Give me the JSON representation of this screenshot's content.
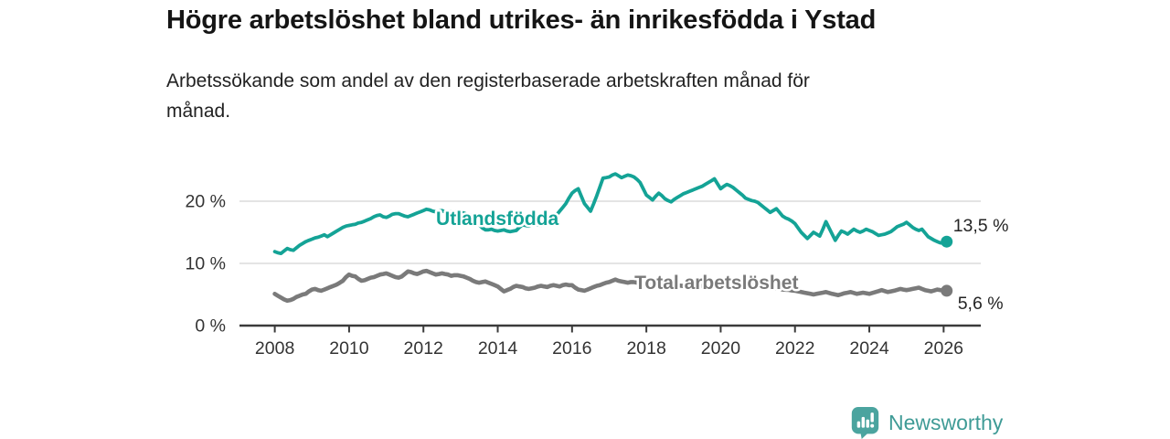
{
  "header": {
    "title": "Högre arbetslöshet bland utrikes- än inrikesfödda i Ystad",
    "subtitle": "Arbetssökande som andel av den registerbaserade arbetskraften månad för\nmånad."
  },
  "footer": {
    "brand": "Newsworthy",
    "logo_icon": "bar-chart-speech-bubble-icon",
    "brand_color": "#3F9B96",
    "logo_color": "#4BA49F"
  },
  "colors": {
    "background": "#ffffff",
    "grid": "#DCDCDC",
    "axis": "#3A3A3A",
    "tick_text": "#333333",
    "value_text": "#242424",
    "accent_teal": "#14A396",
    "neutral_gray": "#7A7A7A"
  },
  "chart_data": {
    "type": "line",
    "title": "Högre arbetslöshet bland utrikes- än inrikesfödda i Ystad",
    "subtitle": "Arbetssökande som andel av den registerbaserade arbetskraften månad för månad.",
    "xlabel": "",
    "ylabel": "",
    "grid": "horizontal",
    "legend_position": "inline-labels",
    "x_range": [
      2007.05,
      2027.0
    ],
    "y_range": [
      0,
      27.3
    ],
    "x_ticks": [
      2008,
      2010,
      2012,
      2014,
      2016,
      2018,
      2020,
      2022,
      2024,
      2026
    ],
    "y_ticks": [
      {
        "value": 0,
        "label": "0 %"
      },
      {
        "value": 10,
        "label": "10 %"
      },
      {
        "value": 20,
        "label": "20 %"
      }
    ],
    "x_unit": "year (monthly series)",
    "y_unit": "percent",
    "x_start": 2008.0,
    "x_step": 0.08333,
    "series": [
      {
        "name": "Utlandsfödda",
        "color": "#14A396",
        "line_width": 3.8,
        "end_value": 13.5,
        "end_value_label": "13,5 %",
        "label_anchor": {
          "x": 2012.34,
          "y": 16.2
        },
        "values": [
          11.9,
          11.7,
          11.6,
          12.0,
          12.4,
          12.2,
          12.1,
          12.5,
          12.9,
          13.2,
          13.5,
          13.7,
          13.9,
          14.1,
          14.2,
          14.4,
          14.6,
          14.3,
          14.6,
          14.9,
          15.2,
          15.5,
          15.8,
          16.0,
          16.1,
          16.2,
          16.3,
          16.5,
          16.6,
          16.8,
          17.0,
          17.2,
          17.5,
          17.7,
          17.8,
          17.5,
          17.4,
          17.6,
          17.9,
          18.0,
          18.0,
          17.8,
          17.6,
          17.5,
          17.7,
          17.9,
          18.1,
          18.3,
          18.5,
          18.7,
          18.6,
          18.4,
          18.3,
          18.4,
          18.5,
          18.3,
          18.2,
          18.3,
          18.3,
          18.2,
          18.2,
          18.1,
          17.9,
          17.8,
          17.6,
          16.9,
          16.2,
          15.7,
          15.4,
          15.4,
          15.5,
          15.3,
          15.2,
          15.3,
          15.4,
          15.2,
          15.1,
          15.2,
          15.3,
          15.8,
          16.2,
          16.1,
          16.0,
          16.2,
          16.4,
          16.2,
          16.1,
          16.4,
          16.6,
          16.9,
          17.2,
          17.8,
          18.4,
          19.0,
          19.6,
          20.5,
          21.3,
          21.7,
          22.0,
          20.8,
          19.6,
          19.0,
          18.4,
          19.6,
          20.9,
          22.3,
          23.7,
          23.8,
          23.9,
          24.2,
          24.4,
          24.1,
          23.8,
          24.0,
          24.2,
          24.1,
          23.9,
          23.5,
          23.0,
          22.0,
          21.0,
          20.6,
          20.2,
          20.8,
          21.3,
          20.9,
          20.4,
          20.1,
          19.9,
          20.3,
          20.6,
          20.9,
          21.2,
          21.4,
          21.6,
          21.8,
          22.0,
          22.2,
          22.4,
          22.7,
          23.0,
          23.3,
          23.6,
          22.8,
          22.0,
          22.4,
          22.7,
          22.5,
          22.2,
          21.8,
          21.4,
          21.0,
          20.5,
          20.3,
          20.1,
          20.0,
          19.8,
          19.4,
          19.0,
          18.6,
          18.2,
          18.5,
          18.8,
          18.2,
          17.6,
          17.3,
          17.1,
          16.8,
          16.4,
          15.7,
          15.0,
          14.5,
          14.0,
          14.5,
          15.0,
          14.7,
          14.4,
          15.5,
          16.7,
          15.7,
          14.7,
          13.7,
          14.5,
          15.2,
          15.0,
          14.7,
          15.1,
          15.5,
          15.2,
          15.0,
          15.2,
          15.5,
          15.3,
          15.1,
          14.8,
          14.5,
          14.6,
          14.7,
          14.9,
          15.1,
          15.5,
          15.9,
          16.1,
          16.3,
          16.6,
          16.2,
          15.8,
          15.5,
          15.3,
          15.5,
          14.9,
          14.3,
          14.0,
          13.7,
          13.5,
          13.3,
          13.3,
          13.5
        ]
      },
      {
        "name": "Total arbetslöshet",
        "color": "#7A7A7A",
        "line_width": 4.6,
        "end_value": 5.6,
        "end_value_label": "5,6 %",
        "label_anchor": {
          "x": 2017.68,
          "y": 5.9
        },
        "values": [
          5.1,
          4.8,
          4.5,
          4.2,
          4.0,
          4.1,
          4.3,
          4.6,
          4.8,
          5.0,
          5.1,
          5.5,
          5.8,
          5.9,
          5.7,
          5.6,
          5.8,
          6.0,
          6.2,
          6.4,
          6.6,
          6.9,
          7.2,
          7.8,
          8.2,
          8.0,
          7.9,
          7.5,
          7.2,
          7.3,
          7.5,
          7.7,
          7.8,
          8.0,
          8.2,
          8.3,
          8.4,
          8.2,
          8.0,
          7.8,
          7.7,
          7.9,
          8.3,
          8.7,
          8.6,
          8.4,
          8.3,
          8.5,
          8.7,
          8.8,
          8.6,
          8.4,
          8.2,
          8.3,
          8.4,
          8.3,
          8.2,
          8.0,
          8.1,
          8.1,
          8.0,
          7.9,
          7.7,
          7.5,
          7.2,
          7.0,
          6.9,
          7.0,
          7.1,
          6.9,
          6.7,
          6.5,
          6.3,
          5.9,
          5.5,
          5.7,
          5.9,
          6.2,
          6.4,
          6.3,
          6.2,
          6.0,
          5.9,
          6.0,
          6.1,
          6.3,
          6.4,
          6.3,
          6.2,
          6.4,
          6.5,
          6.4,
          6.3,
          6.5,
          6.6,
          6.5,
          6.5,
          6.1,
          5.8,
          5.7,
          5.6,
          5.8,
          6.0,
          6.2,
          6.4,
          6.5,
          6.7,
          6.9,
          7.0,
          7.2,
          7.4,
          7.2,
          7.1,
          7.0,
          6.9,
          7.0,
          7.0,
          6.9,
          6.8,
          6.8,
          6.7,
          6.68,
          6.66,
          6.63,
          6.6,
          6.58,
          6.55,
          6.52,
          6.5,
          6.47,
          6.44,
          6.42,
          6.35,
          6.32,
          6.3,
          6.32,
          6.34,
          6.37,
          6.4,
          6.42,
          6.45,
          6.48,
          6.5,
          6.55,
          6.6,
          6.75,
          6.9,
          7.05,
          7.2,
          7.15,
          7.1,
          7.0,
          6.9,
          6.8,
          6.7,
          6.6,
          6.5,
          6.4,
          6.3,
          6.2,
          6.1,
          6.03,
          5.95,
          5.88,
          5.8,
          5.77,
          5.73,
          5.65,
          5.6,
          5.5,
          5.4,
          5.3,
          5.2,
          5.1,
          5.0,
          5.1,
          5.2,
          5.3,
          5.4,
          5.25,
          5.1,
          5.0,
          4.9,
          5.05,
          5.2,
          5.3,
          5.4,
          5.25,
          5.1,
          5.2,
          5.3,
          5.2,
          5.1,
          5.25,
          5.4,
          5.55,
          5.7,
          5.55,
          5.4,
          5.5,
          5.6,
          5.75,
          5.9,
          5.8,
          5.7,
          5.8,
          5.9,
          6.0,
          6.1,
          5.9,
          5.7,
          5.6,
          5.5,
          5.65,
          5.8,
          5.7,
          5.65,
          5.6
        ]
      }
    ]
  }
}
